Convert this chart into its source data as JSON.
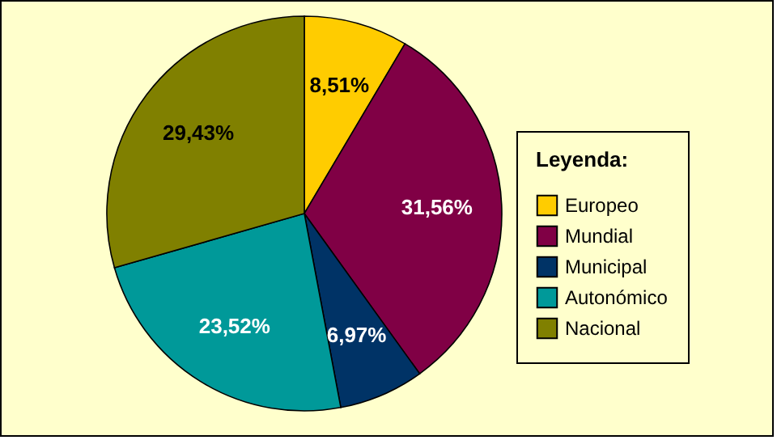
{
  "chart_data": {
    "type": "pie",
    "legend_title": "Leyenda:",
    "legend": "right",
    "categories": [
      "Europeo",
      "Mundial",
      "Municipal",
      "Autonómico",
      "Nacional"
    ],
    "values": [
      8.51,
      31.56,
      6.97,
      23.52,
      29.43
    ],
    "value_labels": [
      "8,51%",
      "31,56%",
      "6,97%",
      "23,52%",
      "29,43%"
    ],
    "colors": [
      "#ffcc00",
      "#800045",
      "#003366",
      "#009999",
      "#808000"
    ]
  }
}
